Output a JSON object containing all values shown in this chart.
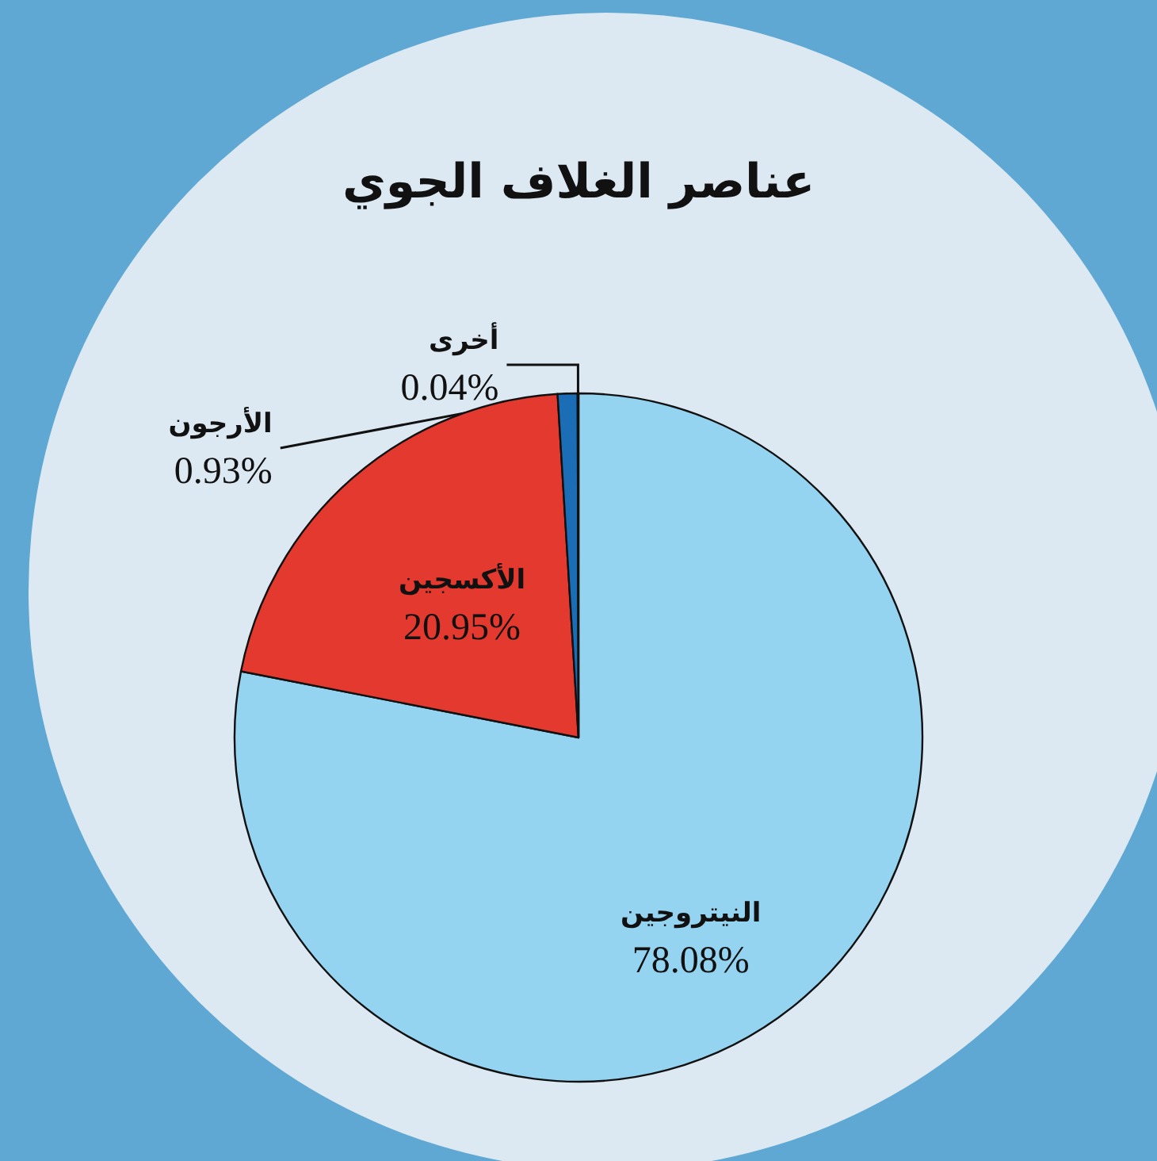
{
  "chart_data": {
    "type": "pie",
    "title": "عناصر الغلاف الجوي",
    "categories": [
      "النيتروجين",
      "الأكسجين",
      "الأرجون",
      "أخرى"
    ],
    "values": [
      78.08,
      20.95,
      0.93,
      0.04
    ],
    "colors": [
      "#95d4f1",
      "#e4392f",
      "#1b6db5",
      "#4f8a2b"
    ],
    "value_labels": [
      "78.08%",
      "20.95%",
      "0.93%",
      "0.04%"
    ]
  }
}
